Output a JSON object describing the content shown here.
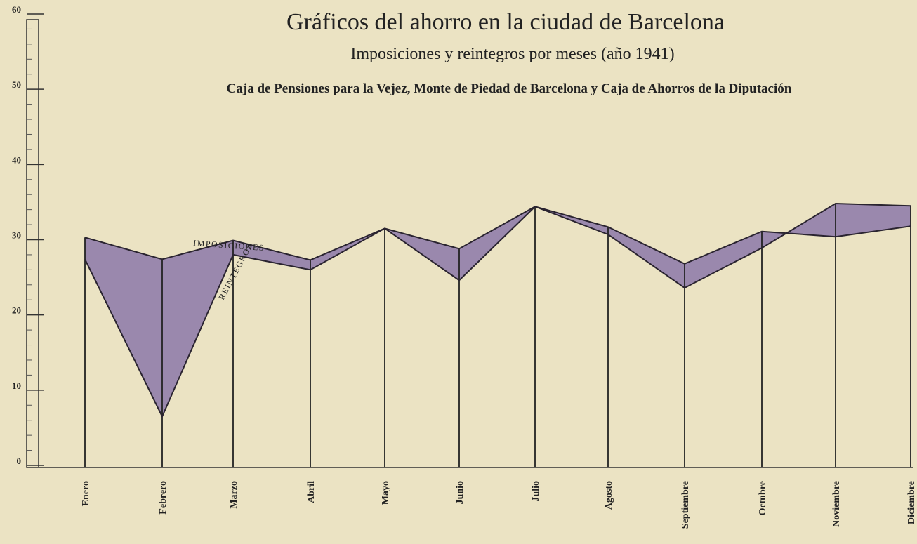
{
  "chart_data": {
    "type": "line",
    "title": "Gráficos del ahorro en la ciudad de Barcelona",
    "subtitle": "Imposiciones y reintegros por meses (año 1941)",
    "note": "Caja de Pensiones para la Vejez, Monte de Piedad de Barcelona y Caja de Ahorros de la Diputación",
    "categories": [
      "Enero",
      "Febrero",
      "Marzo",
      "Abril",
      "Mayo",
      "Junio",
      "Julio",
      "Agosto",
      "Septiembre",
      "Octubre",
      "Noviembre",
      "Diciembre"
    ],
    "series": [
      {
        "name": "IMPOSICIONES",
        "color": "#2a2430",
        "values": [
          30.3,
          27.4,
          29.9,
          27.3,
          31.5,
          28.8,
          34.4,
          31.7,
          26.8,
          31.1,
          30.4,
          31.8
        ]
      },
      {
        "name": "REINTEGROS",
        "color": "#2a2430",
        "values": [
          27.4,
          6.5,
          28.0,
          26.0,
          31.5,
          24.6,
          34.4,
          30.7,
          23.6,
          28.9,
          34.8,
          34.5
        ]
      }
    ],
    "fill_color": "#9a88ad",
    "ylim": [
      0,
      60
    ],
    "yticks": [
      0,
      10,
      20,
      30,
      40,
      50,
      60
    ]
  }
}
